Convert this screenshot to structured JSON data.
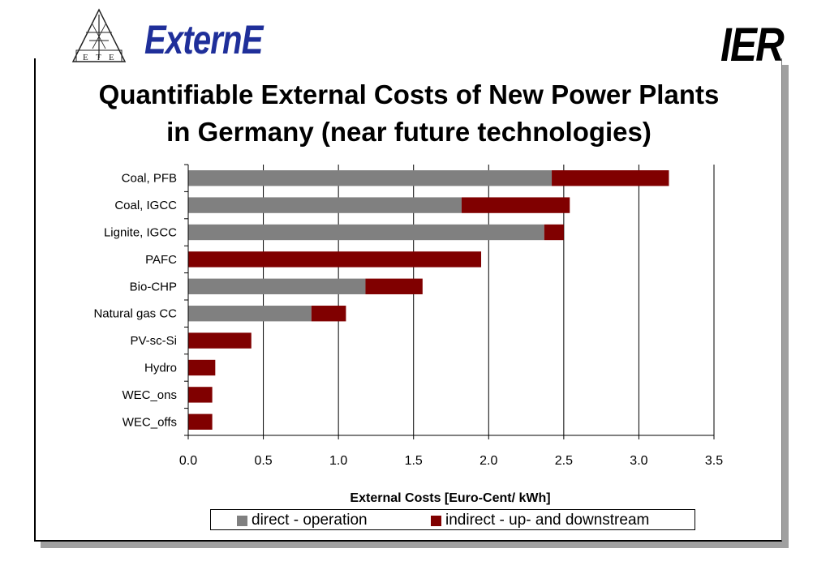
{
  "header": {
    "logo_externe": "ExternE",
    "logo_ier": "IER",
    "emblem_letters": [
      "E",
      "T",
      "E"
    ]
  },
  "slide": {
    "title_line1": "Quantifiable External Costs of New Power Plants",
    "title_line2": "in Germany (near future technologies)"
  },
  "colors": {
    "direct": "#808080",
    "indirect": "#800000"
  },
  "chart_data": {
    "type": "bar",
    "orientation": "horizontal",
    "stacked": true,
    "categories": [
      "Coal, PFB",
      "Coal, IGCC",
      "Lignite, IGCC",
      "PAFC",
      "Bio-CHP",
      "Natural gas CC",
      "PV-sc-Si",
      "Hydro",
      "WEC_ons",
      "WEC_offs"
    ],
    "series": [
      {
        "name": "direct - operation",
        "values": [
          2.42,
          1.82,
          2.37,
          0,
          1.18,
          0.82,
          0,
          0,
          0,
          0
        ]
      },
      {
        "name": "indirect - up- and downstream",
        "values": [
          0.78,
          0.72,
          0.13,
          1.95,
          0.38,
          0.23,
          0.42,
          0.18,
          0.16,
          0.16
        ]
      }
    ],
    "xlabel": "External Costs [Euro-Cent/ kWh]",
    "xlim": [
      0,
      3.5
    ],
    "xticks": [
      "0.0",
      "0.5",
      "1.0",
      "1.5",
      "2.0",
      "2.5",
      "3.0",
      "3.5"
    ],
    "grid": "vertical",
    "legend_position": "bottom"
  }
}
